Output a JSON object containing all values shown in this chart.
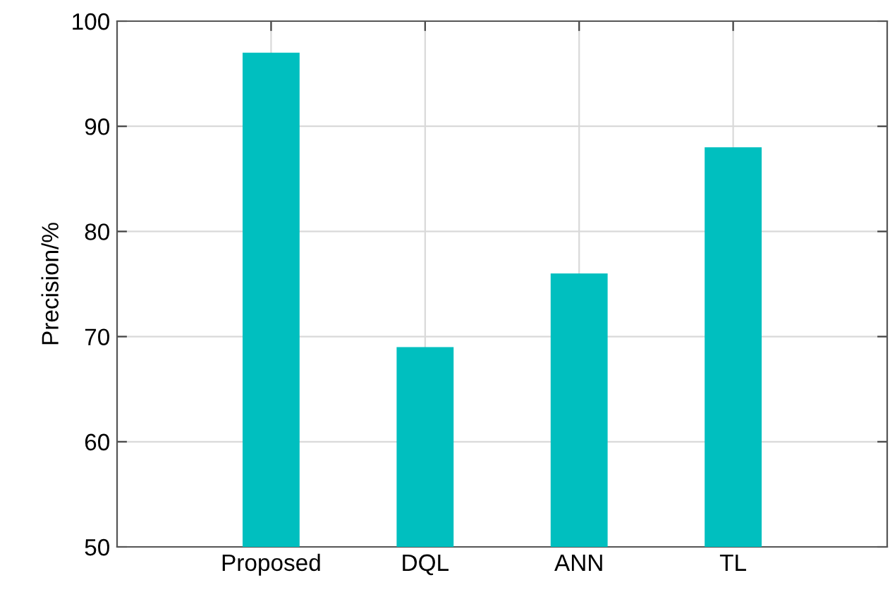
{
  "chart_data": {
    "type": "bar",
    "ylabel": "Precision/%",
    "categories": [
      "Proposed",
      "DQL",
      "ANN",
      "TL"
    ],
    "values": [
      97,
      69,
      76,
      88
    ],
    "color": "#00bfbf",
    "ylim": [
      50,
      100
    ],
    "yticks": [
      50,
      60,
      70,
      80,
      90,
      100
    ],
    "grid": true
  }
}
